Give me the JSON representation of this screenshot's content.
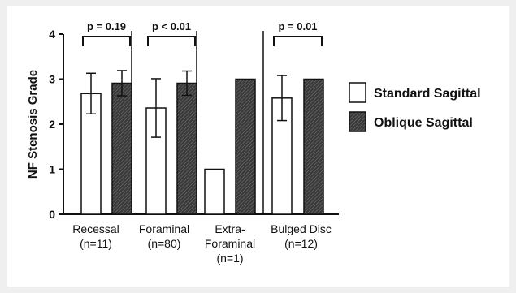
{
  "chart_data": {
    "type": "bar",
    "ylabel": "NF Stenosis Grade",
    "ylim": [
      0,
      4
    ],
    "yticks": [
      "0",
      "1",
      "2",
      "3",
      "4"
    ],
    "grid": false,
    "legend_position": "right",
    "colors": {
      "standard": "#ffffff",
      "oblique": "#3a3a3a",
      "outline": "#111111"
    },
    "series": [
      {
        "name": "Standard Sagittal",
        "fill": "white"
      },
      {
        "name": "Oblique Sagittal",
        "fill": "hatched-dark"
      }
    ],
    "groups": [
      {
        "label_lines": [
          "Recessal",
          "(n=11)"
        ],
        "values": [
          2.68,
          2.91
        ],
        "error": [
          0.45,
          0.28
        ],
        "annotation": "p = 0.19"
      },
      {
        "label_lines": [
          "Foraminal",
          "(n=80)"
        ],
        "values": [
          2.36,
          2.91
        ],
        "error": [
          0.65,
          0.27
        ],
        "annotation": "p < 0.01"
      },
      {
        "label_lines": [
          "Extra-",
          "Foraminal",
          "(n=1)"
        ],
        "values": [
          1.0,
          3.0
        ],
        "error": [
          0,
          0
        ],
        "annotation": ""
      },
      {
        "label_lines": [
          "Bulged Disc",
          "(n=12)"
        ],
        "values": [
          2.58,
          3.0
        ],
        "error": [
          0.5,
          0
        ],
        "annotation": "p = 0.01"
      }
    ]
  }
}
